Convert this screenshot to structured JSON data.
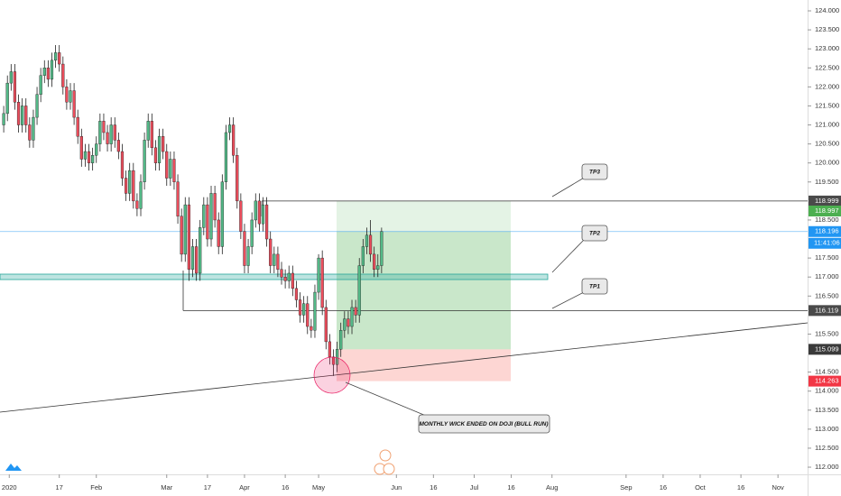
{
  "chart_data": {
    "type": "candlestick",
    "open": [
      121.0,
      121.3,
      122.1,
      122.4,
      121.6,
      121.0,
      121.5,
      121.0,
      120.6,
      121.2,
      121.8,
      122.3,
      122.5,
      122.2,
      122.7,
      122.9,
      122.6,
      122.0,
      121.6,
      121.9,
      121.2,
      120.7,
      120.1,
      120.3,
      120.0,
      120.2,
      120.5,
      121.1,
      120.8,
      120.5,
      121.0,
      120.6,
      120.3,
      119.6,
      119.2,
      119.8,
      119.0,
      118.8,
      119.5,
      120.6,
      121.1,
      120.4,
      120.0,
      120.7,
      120.3,
      119.6,
      120.1,
      119.5,
      118.6,
      117.6,
      118.9,
      117.2,
      117.8,
      117.1,
      118.3,
      118.9,
      118.0,
      119.2,
      118.5,
      117.8,
      119.5,
      120.8,
      121.0,
      120.2,
      119.0,
      118.2,
      117.3,
      117.8,
      118.5,
      119.0,
      118.4,
      118.9,
      118.0,
      117.3,
      117.6,
      117.2,
      117.0,
      116.9,
      117.1,
      116.7,
      116.4,
      116.0,
      116.3,
      115.7,
      115.6,
      116.6,
      117.5,
      116.2,
      115.3,
      114.9,
      114.7,
      115.1,
      115.6,
      115.9,
      115.7,
      116.2,
      116.0,
      117.3,
      117.8,
      118.1,
      117.6,
      117.2,
      117.3
    ],
    "high": [
      121.5,
      122.3,
      122.6,
      122.6,
      121.8,
      121.7,
      121.7,
      121.2,
      121.4,
      122.0,
      122.5,
      122.7,
      122.7,
      122.9,
      123.1,
      123.1,
      122.8,
      122.2,
      122.1,
      122.1,
      121.4,
      120.9,
      120.5,
      120.5,
      120.4,
      120.7,
      121.3,
      121.3,
      121.0,
      121.2,
      121.2,
      120.8,
      120.5,
      119.8,
      120.0,
      120.0,
      119.2,
      119.7,
      120.8,
      121.3,
      121.3,
      120.6,
      120.9,
      120.9,
      120.5,
      120.3,
      120.3,
      119.7,
      118.8,
      119.1,
      119.1,
      118.0,
      118.0,
      118.5,
      119.1,
      119.1,
      119.4,
      119.4,
      118.7,
      119.7,
      121.0,
      121.2,
      121.2,
      120.4,
      119.2,
      118.4,
      118.0,
      118.7,
      119.2,
      119.2,
      119.1,
      119.1,
      118.2,
      117.8,
      117.8,
      117.4,
      117.2,
      117.3,
      117.3,
      116.9,
      116.6,
      116.5,
      116.5,
      115.9,
      116.8,
      117.6,
      117.7,
      116.4,
      115.5,
      115.1,
      115.3,
      115.8,
      116.1,
      116.1,
      116.4,
      116.4,
      117.5,
      118.0,
      118.3,
      118.5,
      117.8,
      117.6,
      118.3
    ],
    "low": [
      120.8,
      121.1,
      121.9,
      121.4,
      120.8,
      120.8,
      120.8,
      120.4,
      120.4,
      121.0,
      121.6,
      122.1,
      122.0,
      122.0,
      122.5,
      122.4,
      121.8,
      121.4,
      121.4,
      121.0,
      120.5,
      119.9,
      119.9,
      119.8,
      119.8,
      120.0,
      120.3,
      120.6,
      120.3,
      120.3,
      120.4,
      120.1,
      119.4,
      119.0,
      119.0,
      118.8,
      118.6,
      118.6,
      119.3,
      120.4,
      120.2,
      119.8,
      119.8,
      120.1,
      119.4,
      119.4,
      119.3,
      118.4,
      117.4,
      117.4,
      116.9,
      117.0,
      116.9,
      116.9,
      118.1,
      117.8,
      117.8,
      118.3,
      117.6,
      117.6,
      119.3,
      120.6,
      120.0,
      118.8,
      118.0,
      117.1,
      117.1,
      117.6,
      118.3,
      118.2,
      118.2,
      117.8,
      117.1,
      117.1,
      117.0,
      116.8,
      116.7,
      116.7,
      116.5,
      116.2,
      115.8,
      115.8,
      115.5,
      115.4,
      115.4,
      116.4,
      116.0,
      115.1,
      114.7,
      114.4,
      114.5,
      114.9,
      115.4,
      115.5,
      115.5,
      115.8,
      115.8,
      117.1,
      117.6,
      117.4,
      117.0,
      117.0,
      117.1
    ],
    "close": [
      121.3,
      122.1,
      122.4,
      121.6,
      121.0,
      121.5,
      121.0,
      120.6,
      121.2,
      121.8,
      122.3,
      122.5,
      122.2,
      122.7,
      122.9,
      122.6,
      122.0,
      121.6,
      121.9,
      121.2,
      120.7,
      120.1,
      120.3,
      120.0,
      120.2,
      120.5,
      121.1,
      120.8,
      120.5,
      121.0,
      120.6,
      120.3,
      119.6,
      119.2,
      119.8,
      119.0,
      118.8,
      119.5,
      120.6,
      121.1,
      120.4,
      120.0,
      120.7,
      120.3,
      119.6,
      120.1,
      119.5,
      118.6,
      117.6,
      118.9,
      117.2,
      117.8,
      117.1,
      118.3,
      118.9,
      118.0,
      119.2,
      118.5,
      117.8,
      119.5,
      120.8,
      121.0,
      120.2,
      119.0,
      118.2,
      117.3,
      117.8,
      118.5,
      119.0,
      118.4,
      118.9,
      118.0,
      117.3,
      117.6,
      117.2,
      117.0,
      116.9,
      117.1,
      116.7,
      116.4,
      116.0,
      116.3,
      115.7,
      115.6,
      116.6,
      117.5,
      116.2,
      115.3,
      114.9,
      114.7,
      115.1,
      115.6,
      115.9,
      115.7,
      116.2,
      116.0,
      117.3,
      117.8,
      118.1,
      117.6,
      117.2,
      117.3,
      118.2
    ],
    "up_color": "#53b987",
    "down_color": "#eb4d5c",
    "xlim": [
      -1,
      217
    ],
    "xticks": [
      {
        "value": 1.5,
        "label": "2020"
      },
      {
        "value": 15,
        "label": "17"
      },
      {
        "value": 25,
        "label": "Feb"
      },
      {
        "value": 44,
        "label": "Mar"
      },
      {
        "value": 55,
        "label": "17"
      },
      {
        "value": 65,
        "label": "Apr"
      },
      {
        "value": 76,
        "label": "16"
      },
      {
        "value": 85,
        "label": "May"
      },
      {
        "value": 106,
        "label": "Jun"
      },
      {
        "value": 116,
        "label": "16"
      },
      {
        "value": 127,
        "label": "Jul"
      },
      {
        "value": 137,
        "label": "16"
      },
      {
        "value": 148,
        "label": "Aug"
      },
      {
        "value": 168,
        "label": "Sep"
      },
      {
        "value": 178,
        "label": "16"
      },
      {
        "value": 188,
        "label": "Oct"
      },
      {
        "value": 199,
        "label": "16"
      },
      {
        "value": 209,
        "label": "Nov"
      }
    ],
    "ylim": [
      111.835,
      124.285
    ],
    "yticks": [
      {
        "value": 124,
        "label": "124.000"
      },
      {
        "value": 123.5,
        "label": "123.500"
      },
      {
        "value": 123,
        "label": "123.000"
      },
      {
        "value": 122.5,
        "label": "122.500"
      },
      {
        "value": 122,
        "label": "122.000"
      },
      {
        "value": 121.5,
        "label": "121.500"
      },
      {
        "value": 121,
        "label": "121.000"
      },
      {
        "value": 120.5,
        "label": "120.500"
      },
      {
        "value": 120,
        "label": "120.000"
      },
      {
        "value": 119.5,
        "label": "119.500"
      },
      {
        "value": 118.5,
        "label": "118.500"
      },
      {
        "value": 117.5,
        "label": "117.500"
      },
      {
        "value": 117,
        "label": "117.000"
      },
      {
        "value": 116.5,
        "label": "116.500"
      },
      {
        "value": 115.5,
        "label": "115.500"
      },
      {
        "value": 114.5,
        "label": "114.500"
      },
      {
        "value": 114,
        "label": "114.000"
      },
      {
        "value": 113.5,
        "label": "113.500"
      },
      {
        "value": 113,
        "label": "113.000"
      },
      {
        "value": 112.5,
        "label": "112.500"
      },
      {
        "value": 112,
        "label": "112.000"
      }
    ],
    "price_labels": [
      {
        "value": 118.999,
        "color": "#4a4a4a"
      },
      {
        "value": 118.997,
        "color": "#4caf50"
      },
      {
        "value": 118.196,
        "color": "#2196f3"
      },
      {
        "value": 116.119,
        "color": "#4a4a4a"
      },
      {
        "value": 115.099,
        "color": "#3a3a3a"
      },
      {
        "value": 114.263,
        "color": "#f23645"
      }
    ],
    "countdown": "11:41:06",
    "annotations": {
      "tp3": "TP3",
      "tp2": "TP2",
      "tp1": "TP1",
      "note": "MONTHLY WICK ENDED ON DOJI (BULL RUN)"
    }
  }
}
